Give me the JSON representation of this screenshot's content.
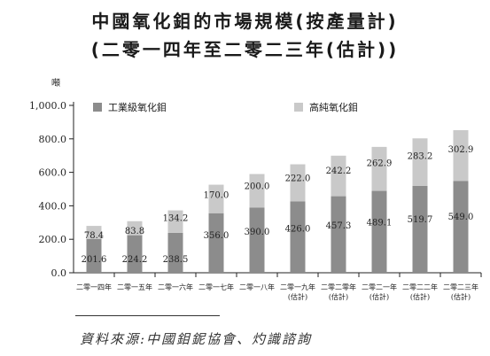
{
  "title_line1": "中國氧化鉬的市場規模(按產量計)",
  "title_line2": "(二零一四年至二零二三年(估計))",
  "source": "資料來源:中國鉬鈮協會、灼識諮詢",
  "chart_data": {
    "type": "bar",
    "stacked": true,
    "unit_label": "噸",
    "ylim": [
      0,
      1000
    ],
    "yticks": [
      0,
      200,
      400,
      600,
      800,
      1000
    ],
    "ytick_labels": [
      "0.0",
      "200.0",
      "400.0",
      "600.0",
      "800.0",
      "1,000.0"
    ],
    "categories": [
      [
        "二零一四年"
      ],
      [
        "二零一五年"
      ],
      [
        "二零一六年"
      ],
      [
        "二零一七年"
      ],
      [
        "二零一八年"
      ],
      [
        "二零一九年",
        "(估計)"
      ],
      [
        "二零二零年",
        "(估計)"
      ],
      [
        "二零二一年",
        "(估計)"
      ],
      [
        "二零二二年",
        "(估計)"
      ],
      [
        "二零二三年",
        "(估計)"
      ]
    ],
    "series": [
      {
        "name": "工業級氧化鉬",
        "color": "#8c8c8c",
        "values": [
          201.6,
          224.2,
          238.5,
          356.0,
          390.0,
          426.0,
          457.3,
          489.1,
          519.7,
          549.0
        ],
        "labels": [
          "201.6",
          "224.2",
          "238.5",
          "356.0",
          "390.0",
          "426.0",
          "457.3",
          "489.1",
          "519.7",
          "549.0"
        ]
      },
      {
        "name": "高純氧化鉬",
        "color": "#c9c9c9",
        "values": [
          78.4,
          83.8,
          134.2,
          170.0,
          200.0,
          222.0,
          242.2,
          262.9,
          283.2,
          302.9
        ],
        "labels": [
          "78.4",
          "83.8",
          "134.2",
          "170.0",
          "200.0",
          "222.0",
          "242.2",
          "262.9",
          "283.2",
          "302.9"
        ]
      }
    ],
    "legend": "top",
    "grid": false
  }
}
